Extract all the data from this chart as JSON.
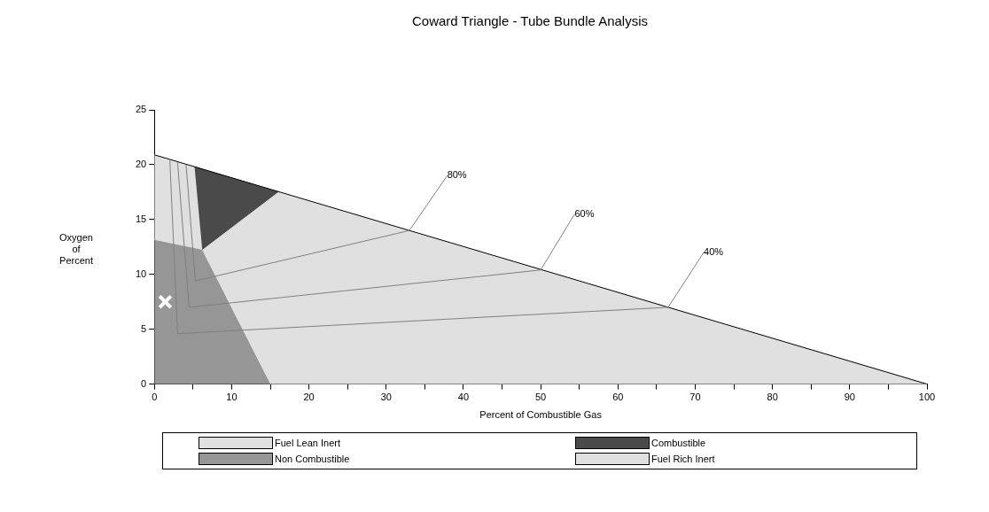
{
  "chart_data": {
    "type": "area",
    "title": "Coward Triangle - Tube Bundle Analysis",
    "xlabel": "Percent of Combustible Gas",
    "ylabel": "Oxygen of Percent",
    "xlim": [
      0,
      100
    ],
    "ylim": [
      0,
      25
    ],
    "xticks": [
      0,
      {
        "value": 5,
        "label": null
      },
      10,
      {
        "value": 15,
        "label": null
      },
      20,
      {
        "value": 25,
        "label": null
      },
      30,
      {
        "value": 35,
        "label": null
      },
      40,
      {
        "value": 45,
        "label": null
      },
      50,
      {
        "value": 55,
        "label": null
      },
      60,
      {
        "value": 65,
        "label": null
      },
      70,
      {
        "value": 75,
        "label": null
      },
      80,
      {
        "value": 85,
        "label": null
      },
      90,
      {
        "value": 95,
        "label": null
      },
      100
    ],
    "yticks": [
      0,
      5,
      10,
      15,
      20,
      25
    ],
    "grid": false,
    "legend": "bottom",
    "series": [
      {
        "name": "Fuel Lean Inert",
        "color": "#e0e0e0",
        "x": [
          0,
          5.2,
          6.2,
          0
        ],
        "values": [
          20.9,
          19.8,
          12.2,
          13.1
        ]
      },
      {
        "name": "Combustible",
        "color": "#4a4a4a",
        "x": [
          5.2,
          16.1,
          6.2
        ],
        "values": [
          19.8,
          17.5,
          12.2
        ]
      },
      {
        "name": "Non Combustible",
        "color": "#969696",
        "x": [
          0,
          6.2,
          15,
          0
        ],
        "values": [
          13.1,
          12.2,
          0,
          0
        ]
      },
      {
        "name": "Fuel Rich Inert",
        "color": "#e0e0e0",
        "x": [
          6.2,
          16.1,
          100,
          15
        ],
        "values": [
          12.2,
          17.5,
          0,
          0
        ]
      },
      {
        "type": "line",
        "color": "#000000",
        "x": [
          0,
          100
        ],
        "values": [
          20.9,
          0
        ]
      },
      {
        "type": "line",
        "color": "#808080",
        "x": [
          4.1,
          5.3,
          33,
          37.9
        ],
        "values": [
          20.0,
          9.4,
          14.0,
          19.0
        ]
      },
      {
        "type": "line",
        "color": "#808080",
        "x": [
          3.0,
          4.5,
          50,
          54.4
        ],
        "values": [
          20.2,
          7.0,
          10.4,
          15.5
        ]
      },
      {
        "type": "line",
        "color": "#808080",
        "x": [
          2.0,
          3.0,
          66.5,
          71.1
        ],
        "values": [
          20.4,
          4.6,
          7.0,
          12.0
        ]
      },
      {
        "type": "scatter",
        "color": "#ffffff",
        "marker": "cross",
        "x": [
          1.4
        ],
        "values": [
          7.5
        ]
      }
    ],
    "annotations": [
      {
        "text": "80%",
        "x": 37.9,
        "y": 19.0
      },
      {
        "text": "60%",
        "x": 54.4,
        "y": 15.5
      },
      {
        "text": "40%",
        "x": 71.1,
        "y": 12.0
      }
    ]
  }
}
